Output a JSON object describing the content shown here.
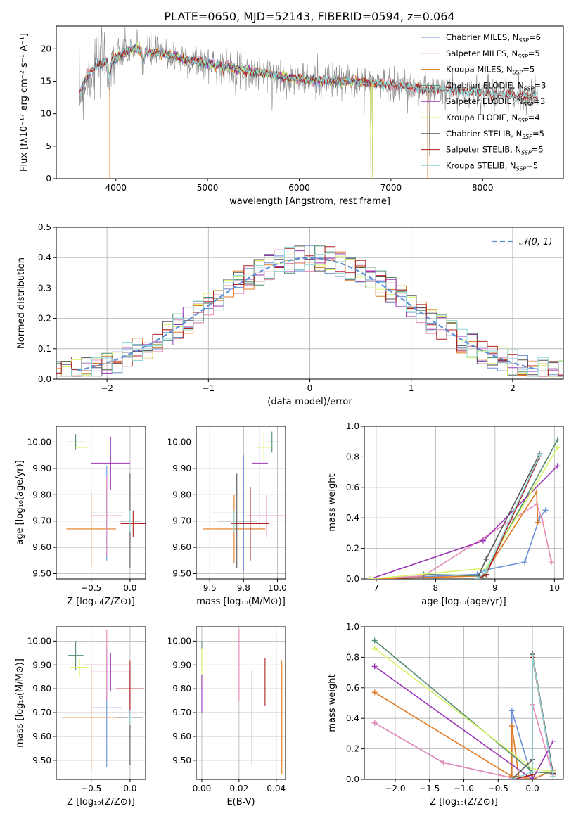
{
  "figure_title": "PLATE=0650, MJD=52143, FIBERID=0594, z=0.064",
  "colors": {
    "chabrier_miles": "#6a8fd6",
    "salpeter_miles": "#e88ab8",
    "kroupa_miles": "#e07b23",
    "chabrier_elodie": "#4f8a6b",
    "salpeter_elodie": "#9b35b5",
    "kroupa_elodie": "#d9f56b",
    "chabrier_stelib": "#555555",
    "salpeter_stelib": "#b02020",
    "kroupa_stelib": "#8fd8d8",
    "normal": "#5b8fd6",
    "observed": "#8a8a8a"
  },
  "chart_data": [
    {
      "id": "spectrum",
      "type": "line",
      "title": "PLATE=0650, MJD=52143, FIBERID=0594, z=0.064",
      "xlabel": "wavelength [Angstrom, rest frame]",
      "ylabel": "Flux [fλ10⁻¹⁷ erg cm⁻² s⁻¹ A⁻¹]",
      "xlim": [
        3350,
        8880
      ],
      "ylim": [
        0,
        23.5
      ],
      "xticks": [
        4000,
        5000,
        6000,
        7000,
        8000
      ],
      "yticks": [
        0,
        5,
        10,
        15,
        20
      ],
      "legend_position": "top-right",
      "legend": [
        {
          "key": "chabrier_miles",
          "name": "Chabrier MILES, N",
          "sub": "SSP",
          "suffix": "=6"
        },
        {
          "key": "salpeter_miles",
          "name": "Salpeter MILES, N",
          "sub": "SSP",
          "suffix": "=5"
        },
        {
          "key": "kroupa_miles",
          "name": "Kroupa MILES, N",
          "sub": "SSP",
          "suffix": "=5"
        },
        {
          "key": "chabrier_elodie",
          "name": "Chabrier ELODIE, N",
          "sub": "SSP",
          "suffix": "=3"
        },
        {
          "key": "salpeter_elodie",
          "name": "Salpeter ELODIE, N",
          "sub": "SSP",
          "suffix": "=3"
        },
        {
          "key": "kroupa_elodie",
          "name": "Kroupa ELODIE, N",
          "sub": "SSP",
          "suffix": "=4"
        },
        {
          "key": "chabrier_stelib",
          "name": "Chabrier STELIB, N",
          "sub": "SSP",
          "suffix": "=5"
        },
        {
          "key": "salpeter_stelib",
          "name": "Salpeter STELIB, N",
          "sub": "SSP",
          "suffix": "=5"
        },
        {
          "key": "kroupa_stelib",
          "name": "Kroupa STELIB, N",
          "sub": "SSP",
          "suffix": "=5"
        }
      ],
      "continuum": [
        [
          3600,
          13
        ],
        [
          3700,
          16
        ],
        [
          3800,
          17.5
        ],
        [
          3900,
          18
        ],
        [
          4000,
          18.5
        ],
        [
          4100,
          19.5
        ],
        [
          4200,
          20
        ],
        [
          4300,
          19.5
        ],
        [
          4500,
          19.3
        ],
        [
          4700,
          18.5
        ],
        [
          4900,
          18
        ],
        [
          5100,
          17.5
        ],
        [
          5300,
          17
        ],
        [
          5500,
          16.5
        ],
        [
          5700,
          16
        ],
        [
          5900,
          15.5
        ],
        [
          6100,
          15.2
        ],
        [
          6300,
          15
        ],
        [
          6500,
          15
        ],
        [
          6700,
          15
        ],
        [
          6900,
          14.6
        ],
        [
          7100,
          14.3
        ],
        [
          7300,
          14
        ],
        [
          7500,
          13.7
        ],
        [
          7700,
          13.5
        ],
        [
          7900,
          13.3
        ],
        [
          8100,
          13.1
        ],
        [
          8300,
          12.9
        ],
        [
          8500,
          12.7
        ],
        [
          8700,
          12.5
        ]
      ],
      "dips": [
        [
          3933,
          3,
          0.4
        ],
        [
          6780,
          13,
          0.05
        ],
        [
          7420,
          12,
          0.05
        ],
        [
          4300,
          2.5,
          0.3
        ],
        [
          5175,
          1.2,
          0.2
        ],
        [
          6563,
          1.0,
          0.05
        ]
      ],
      "model_ranges": [
        {
          "key": "chabrier_miles",
          "x": [
            3600,
            7400
          ]
        },
        {
          "key": "salpeter_miles",
          "x": [
            3600,
            7400
          ]
        },
        {
          "key": "kroupa_miles",
          "x": [
            3600,
            7400
          ]
        },
        {
          "key": "chabrier_elodie",
          "x": [
            3900,
            6800
          ]
        },
        {
          "key": "salpeter_elodie",
          "x": [
            3900,
            6800
          ]
        },
        {
          "key": "kroupa_elodie",
          "x": [
            3900,
            6800
          ]
        },
        {
          "key": "chabrier_stelib",
          "x": [
            3600,
            8600
          ]
        },
        {
          "key": "salpeter_stelib",
          "x": [
            3600,
            8600
          ]
        },
        {
          "key": "kroupa_stelib",
          "x": [
            3600,
            8600
          ]
        }
      ]
    },
    {
      "id": "residuals",
      "type": "step",
      "xlabel": "(data-model)/error",
      "ylabel": "Normed distribution",
      "xlim": [
        -2.5,
        2.5
      ],
      "ylim": [
        0,
        0.5
      ],
      "xticks": [
        -2,
        -1,
        0,
        1,
        2
      ],
      "yticks": [
        0.0,
        0.1,
        0.2,
        0.3,
        0.4,
        0.5
      ],
      "legend_position": "top-right",
      "legend_label": "𝒩(0, 1)",
      "bin_width": 0.1,
      "grid": true
    },
    {
      "id": "age_vs_Z",
      "type": "errorbar",
      "xlabel": "Z [log₁₀(Z/Z⊙)]",
      "ylabel": "age  [log₁₀(age/yr)]",
      "xlim": [
        -0.95,
        0.2
      ],
      "ylim": [
        9.48,
        10.06
      ],
      "xticks": [
        -0.5,
        0.0
      ],
      "yticks": [
        9.5,
        9.6,
        9.7,
        9.8,
        9.9,
        10.0
      ],
      "points": [
        {
          "key": "chabrier_elodie",
          "x": -0.7,
          "y": 10.0,
          "xe": 0.12,
          "ye": 0.03
        },
        {
          "key": "kroupa_elodie",
          "x": -0.62,
          "y": 9.98,
          "xe": 0.1,
          "ye": 0.02
        },
        {
          "key": "kroupa_miles",
          "x": -0.5,
          "y": 9.67,
          "xe": 0.32,
          "ye": 0.14
        },
        {
          "key": "chabrier_miles",
          "x": -0.3,
          "y": 9.73,
          "xe": 0.22,
          "ye": 0.18
        },
        {
          "key": "salpeter_miles",
          "x": -0.3,
          "y": 9.72,
          "xe": 0.2,
          "ye": 0.15
        },
        {
          "key": "salpeter_elodie",
          "x": -0.25,
          "y": 9.92,
          "xe": 0.25,
          "ye": 0.1
        },
        {
          "key": "chabrier_stelib",
          "x": 0.0,
          "y": 9.7,
          "xe": 0.14,
          "ye": 0.18
        },
        {
          "key": "salpeter_stelib",
          "x": 0.04,
          "y": 9.69,
          "xe": 0.16,
          "ye": 0.05
        },
        {
          "key": "kroupa_stelib",
          "x": 0.0,
          "y": 9.7,
          "xe": 0.04,
          "ye": 0.04
        }
      ]
    },
    {
      "id": "age_vs_mass",
      "type": "errorbar",
      "xlabel": "mass [log₁₀(M/M⊙)]",
      "ylabel": "",
      "xlim": [
        9.4,
        10.06
      ],
      "ylim": [
        9.48,
        10.06
      ],
      "xticks": [
        9.5,
        9.75,
        10.0
      ],
      "yticks": [
        9.5,
        9.6,
        9.7,
        9.8,
        9.9,
        10.0
      ],
      "points": [
        {
          "key": "chabrier_miles",
          "x": 9.75,
          "y": 9.73,
          "xe": 0.23,
          "ye": 0.22
        },
        {
          "key": "salpeter_miles",
          "x": 9.92,
          "y": 9.72,
          "xe": 0.15,
          "ye": 0.08
        },
        {
          "key": "kroupa_miles",
          "x": 9.68,
          "y": 9.67,
          "xe": 0.23,
          "ye": 0.13
        },
        {
          "key": "chabrier_elodie",
          "x": 9.96,
          "y": 10.0,
          "xe": 0.05,
          "ye": 0.04
        },
        {
          "key": "salpeter_elodie",
          "x": 9.87,
          "y": 9.92,
          "xe": 0.06,
          "ye": 0.25
        },
        {
          "key": "kroupa_elodie",
          "x": 9.9,
          "y": 9.98,
          "xe": 0.05,
          "ye": 0.05
        },
        {
          "key": "chabrier_stelib",
          "x": 9.7,
          "y": 9.7,
          "xe": 0.15,
          "ye": 0.18
        },
        {
          "key": "salpeter_stelib",
          "x": 9.8,
          "y": 9.69,
          "xe": 0.14,
          "ye": 0.14
        },
        {
          "key": "kroupa_stelib",
          "x": 9.68,
          "y": 9.7,
          "xe": 0.02,
          "ye": 0.04
        }
      ]
    },
    {
      "id": "weight_vs_age",
      "type": "line",
      "xlabel": "age  [log₁₀(age/yr)]",
      "ylabel": "mass weight",
      "xlim": [
        6.8,
        10.15
      ],
      "ylim": [
        0,
        1.0
      ],
      "xticks": [
        7,
        8,
        9,
        10
      ],
      "yticks": [
        0.0,
        0.2,
        0.4,
        0.6,
        0.8,
        1.0
      ],
      "series": [
        {
          "key": "chabrier_miles",
          "x": [
            6.9,
            8.7,
            8.85,
            9.5,
            9.75,
            9.85
          ],
          "y": [
            0.0,
            0.03,
            0.06,
            0.11,
            0.4,
            0.45
          ]
        },
        {
          "key": "salpeter_miles",
          "x": [
            6.9,
            7.8,
            9.7,
            9.8,
            9.95
          ],
          "y": [
            0.0,
            0.02,
            0.49,
            0.38,
            0.11
          ]
        },
        {
          "key": "kroupa_miles",
          "x": [
            6.9,
            8.8,
            9.7,
            9.72
          ],
          "y": [
            0.0,
            0.02,
            0.57,
            0.37
          ]
        },
        {
          "key": "chabrier_elodie",
          "x": [
            7.8,
            8.8,
            10.05
          ],
          "y": [
            0.03,
            0.02,
            0.91
          ]
        },
        {
          "key": "salpeter_elodie",
          "x": [
            6.9,
            8.8,
            10.05
          ],
          "y": [
            0.0,
            0.25,
            0.74
          ]
        },
        {
          "key": "kroupa_elodie",
          "x": [
            6.9,
            8.85,
            10.05
          ],
          "y": [
            0.0,
            0.07,
            0.86
          ]
        },
        {
          "key": "chabrier_stelib",
          "x": [
            8.7,
            8.85,
            9.75
          ],
          "y": [
            0.0,
            0.13,
            0.82
          ]
        },
        {
          "key": "salpeter_stelib",
          "x": [
            8.7,
            8.85,
            9.75
          ],
          "y": [
            0.0,
            0.03,
            0.8
          ]
        },
        {
          "key": "kroupa_stelib",
          "x": [
            8.7,
            8.85,
            9.75
          ],
          "y": [
            0.0,
            0.05,
            0.81
          ]
        }
      ]
    },
    {
      "id": "mass_vs_Z",
      "type": "errorbar",
      "xlabel": "Z [log₁₀(Z/Z⊙)]",
      "ylabel": "mass [log₁₀(M/M⊙)]",
      "xlim": [
        -0.95,
        0.2
      ],
      "ylim": [
        9.42,
        10.06
      ],
      "xticks": [
        -0.5,
        0.0
      ],
      "yticks": [
        9.5,
        9.6,
        9.7,
        9.8,
        9.9,
        10.0
      ],
      "points": [
        {
          "key": "chabrier_elodie",
          "x": -0.7,
          "y": 9.94,
          "xe": 0.1,
          "ye": 0.06
        },
        {
          "key": "kroupa_elodie",
          "x": -0.65,
          "y": 9.89,
          "xe": 0.12,
          "ye": 0.04
        },
        {
          "key": "kroupa_miles",
          "x": -0.5,
          "y": 9.68,
          "xe": 0.38,
          "ye": 0.22
        },
        {
          "key": "chabrier_miles",
          "x": -0.3,
          "y": 9.72,
          "xe": 0.2,
          "ye": 0.25
        },
        {
          "key": "salpeter_miles",
          "x": -0.3,
          "y": 9.9,
          "xe": 0.28,
          "ye": 0.15
        },
        {
          "key": "salpeter_elodie",
          "x": -0.25,
          "y": 9.87,
          "xe": 0.25,
          "ye": 0.08
        },
        {
          "key": "chabrier_stelib",
          "x": 0.0,
          "y": 9.68,
          "xe": 0.16,
          "ye": 0.2
        },
        {
          "key": "salpeter_stelib",
          "x": 0.0,
          "y": 9.8,
          "xe": 0.18,
          "ye": 0.12
        },
        {
          "key": "kroupa_stelib",
          "x": 0.0,
          "y": 9.68,
          "xe": 0.04,
          "ye": 0.03
        }
      ]
    },
    {
      "id": "mass_vs_ebv",
      "type": "errorbar",
      "xlabel": "E(B-V)",
      "ylabel": "",
      "xlim": [
        -0.003,
        0.045
      ],
      "ylim": [
        9.42,
        10.06
      ],
      "xticks": [
        0.0,
        0.02,
        0.04
      ],
      "xtick_labels": [
        "0.00",
        "0.02",
        "0.04"
      ],
      "yticks": [
        9.5,
        9.6,
        9.7,
        9.8,
        9.9,
        10.0
      ],
      "points": [
        {
          "key": "chabrier_elodie",
          "x": 0.0,
          "y": 9.94,
          "xe": 0.0,
          "ye": 0.06
        },
        {
          "key": "kroupa_elodie",
          "x": 0.0,
          "y": 9.89,
          "xe": 0.0,
          "ye": 0.08
        },
        {
          "key": "salpeter_elodie",
          "x": 0.0,
          "y": 9.78,
          "xe": 0.0,
          "ye": 0.08
        },
        {
          "key": "salpeter_miles",
          "x": 0.02,
          "y": 9.9,
          "xe": 0.0,
          "ye": 0.15
        },
        {
          "key": "chabrier_stelib",
          "x": 0.027,
          "y": 9.68,
          "xe": 0.0,
          "ye": 0.2
        },
        {
          "key": "kroupa_stelib",
          "x": 0.027,
          "y": 9.68,
          "xe": 0.0,
          "ye": 0.2
        },
        {
          "key": "salpeter_stelib",
          "x": 0.034,
          "y": 9.83,
          "xe": 0.0,
          "ye": 0.1
        },
        {
          "key": "kroupa_miles",
          "x": 0.043,
          "y": 9.68,
          "xe": 0.0,
          "ye": 0.24
        }
      ]
    },
    {
      "id": "weight_vs_Z",
      "type": "line",
      "xlabel": "Z [log₁₀(Z/Z⊙)]",
      "ylabel": "mass weight",
      "xlim": [
        -2.45,
        0.45
      ],
      "ylim": [
        0,
        1.0
      ],
      "xticks": [
        -2.0,
        -1.5,
        -1.0,
        -0.5,
        0.0
      ],
      "yticks": [
        0.0,
        0.2,
        0.4,
        0.6,
        0.8,
        1.0
      ],
      "series": [
        {
          "key": "chabrier_miles",
          "x": [
            -2.3,
            -1.3,
            -0.3,
            -0.3,
            0.0,
            0.3
          ],
          "y": [
            0.37,
            0.11,
            0.01,
            0.45,
            0.0,
            0.06
          ]
        },
        {
          "key": "salpeter_miles",
          "x": [
            -2.3,
            -1.3,
            -0.3,
            0.0,
            0.0,
            0.3
          ],
          "y": [
            0.37,
            0.11,
            0.01,
            0.0,
            0.49,
            0.03
          ]
        },
        {
          "key": "kroupa_miles",
          "x": [
            -2.3,
            -0.3,
            -0.3,
            -0.2,
            0.0,
            0.3
          ],
          "y": [
            0.57,
            0.02,
            0.35,
            0.02,
            0.0,
            0.06
          ]
        },
        {
          "key": "chabrier_elodie",
          "x": [
            -2.3,
            0.0,
            0.3
          ],
          "y": [
            0.91,
            0.05,
            0.04
          ]
        },
        {
          "key": "salpeter_elodie",
          "x": [
            -2.3,
            0.0,
            0.3
          ],
          "y": [
            0.74,
            0.0,
            0.25
          ]
        },
        {
          "key": "kroupa_elodie",
          "x": [
            -2.3,
            0.0,
            0.3
          ],
          "y": [
            0.86,
            0.07,
            0.05
          ]
        },
        {
          "key": "chabrier_stelib",
          "x": [
            -0.3,
            0.0,
            0.0,
            0.3
          ],
          "y": [
            0.0,
            0.13,
            0.82,
            0.04
          ]
        },
        {
          "key": "salpeter_stelib",
          "x": [
            -0.3,
            0.0,
            0.0,
            0.3
          ],
          "y": [
            0.0,
            0.03,
            0.8,
            0.02
          ]
        },
        {
          "key": "kroupa_stelib",
          "x": [
            -0.3,
            0.0,
            0.0,
            0.3
          ],
          "y": [
            0.0,
            0.05,
            0.81,
            0.02
          ]
        }
      ]
    }
  ]
}
